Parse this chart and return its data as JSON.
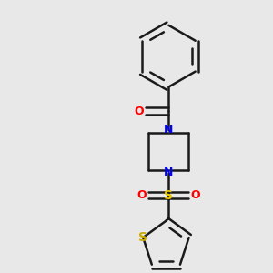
{
  "background_color": "#e8e8e8",
  "bond_color": "#1a1a1a",
  "nitrogen_color": "#0000ff",
  "oxygen_color": "#ff0000",
  "sulfur_color_sulfonyl": "#e8c800",
  "sulfur_color_thiophene": "#ccaa00",
  "line_width": 1.8,
  "figsize": [
    3.0,
    3.0
  ],
  "dpi": 100,
  "xlim": [
    0,
    10
  ],
  "ylim": [
    0,
    10
  ]
}
